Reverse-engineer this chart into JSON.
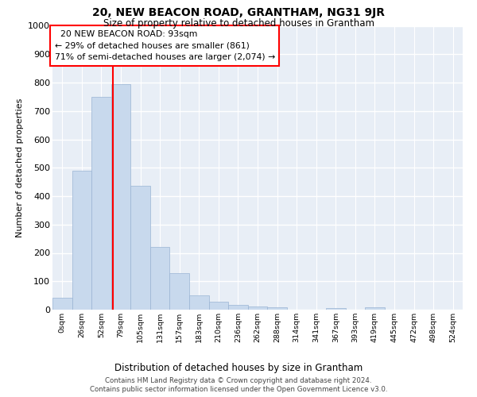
{
  "title": "20, NEW BEACON ROAD, GRANTHAM, NG31 9JR",
  "subtitle": "Size of property relative to detached houses in Grantham",
  "xlabel": "Distribution of detached houses by size in Grantham",
  "ylabel": "Number of detached properties",
  "bar_color": "#c8d9ed",
  "bar_edgecolor": "#9ab4d4",
  "background_color": "#e8eef6",
  "grid_color": "#ffffff",
  "categories": [
    "0sqm",
    "26sqm",
    "52sqm",
    "79sqm",
    "105sqm",
    "131sqm",
    "157sqm",
    "183sqm",
    "210sqm",
    "236sqm",
    "262sqm",
    "288sqm",
    "314sqm",
    "341sqm",
    "367sqm",
    "393sqm",
    "419sqm",
    "445sqm",
    "472sqm",
    "498sqm",
    "524sqm"
  ],
  "values": [
    42,
    490,
    750,
    795,
    435,
    220,
    128,
    50,
    28,
    18,
    12,
    8,
    0,
    0,
    6,
    0,
    8,
    0,
    0,
    0,
    0
  ],
  "ylim": [
    0,
    1000
  ],
  "yticks": [
    0,
    100,
    200,
    300,
    400,
    500,
    600,
    700,
    800,
    900,
    1000
  ],
  "line_x_index": 2.58,
  "annotation_line1": "  20 NEW BEACON ROAD: 93sqm",
  "annotation_line2": "← 29% of detached houses are smaller (861)",
  "annotation_line3": "71% of semi-detached houses are larger (2,074) →",
  "annotation_box_color": "white",
  "annotation_box_edgecolor": "red",
  "vline_color": "red",
  "footer1": "Contains HM Land Registry data © Crown copyright and database right 2024.",
  "footer2": "Contains public sector information licensed under the Open Government Licence v3.0."
}
